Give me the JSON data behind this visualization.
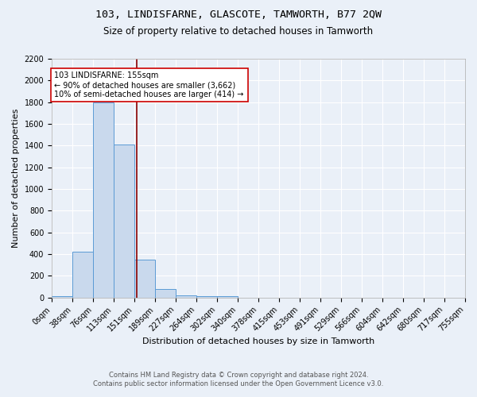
{
  "title": "103, LINDISFARNE, GLASCOTE, TAMWORTH, B77 2QW",
  "subtitle": "Size of property relative to detached houses in Tamworth",
  "xlabel": "Distribution of detached houses by size in Tamworth",
  "ylabel": "Number of detached properties",
  "footer_line1": "Contains HM Land Registry data © Crown copyright and database right 2024.",
  "footer_line2": "Contains public sector information licensed under the Open Government Licence v3.0.",
  "bar_edges": [
    0,
    38,
    76,
    113,
    151,
    189,
    227,
    264,
    302,
    340,
    378,
    415,
    453,
    491,
    529,
    566,
    604,
    642,
    680,
    717,
    755
  ],
  "bar_heights": [
    15,
    420,
    1800,
    1410,
    350,
    75,
    20,
    15,
    15,
    0,
    0,
    0,
    0,
    0,
    0,
    0,
    0,
    0,
    0,
    0
  ],
  "bar_color": "#c9d9ed",
  "bar_edge_color": "#5b9bd5",
  "vline_x": 155,
  "vline_color": "#8b0000",
  "ylim": [
    0,
    2200
  ],
  "yticks": [
    0,
    200,
    400,
    600,
    800,
    1000,
    1200,
    1400,
    1600,
    1800,
    2000,
    2200
  ],
  "xtick_labels": [
    "0sqm",
    "38sqm",
    "76sqm",
    "113sqm",
    "151sqm",
    "189sqm",
    "227sqm",
    "264sqm",
    "302sqm",
    "340sqm",
    "378sqm",
    "415sqm",
    "453sqm",
    "491sqm",
    "529sqm",
    "566sqm",
    "604sqm",
    "642sqm",
    "680sqm",
    "717sqm",
    "755sqm"
  ],
  "annotation_text": "103 LINDISFARNE: 155sqm\n← 90% of detached houses are smaller (3,662)\n10% of semi-detached houses are larger (414) →",
  "annotation_box_color": "#ffffff",
  "annotation_box_edge": "#cc0000",
  "background_color": "#eaf0f8",
  "plot_bg_color": "#eaf0f8",
  "grid_color": "#ffffff",
  "title_fontsize": 9.5,
  "subtitle_fontsize": 8.5,
  "axis_label_fontsize": 8,
  "tick_fontsize": 7,
  "footer_fontsize": 6,
  "annotation_fontsize": 7
}
